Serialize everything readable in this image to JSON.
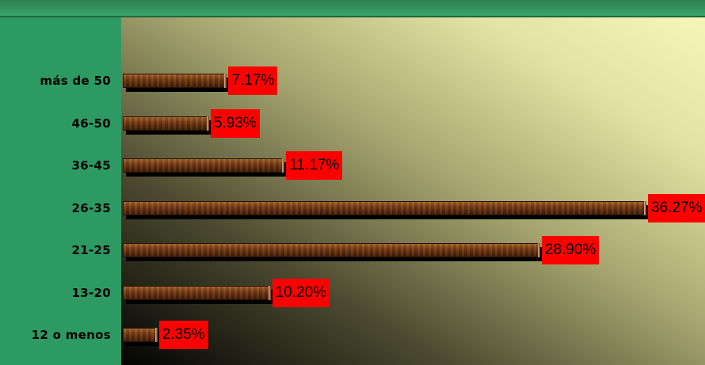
{
  "chart_data": {
    "type": "bar",
    "orientation": "horizontal",
    "categories": [
      "más de 50",
      "46-50",
      "36-45",
      "26-35",
      "21-25",
      "13-20",
      "12 o menos"
    ],
    "values": [
      7.17,
      5.93,
      11.17,
      36.27,
      28.9,
      10.2,
      2.35
    ],
    "data_labels": [
      "7.17%",
      "5.93%",
      "11.17%",
      "36.27%",
      "28.90%",
      "10.20%",
      "2.35%"
    ],
    "title": "",
    "xlabel": "",
    "ylabel": "",
    "xlim": [
      0,
      36.27
    ],
    "grid": false,
    "legend": "none",
    "colors": {
      "bar": "#6b3512",
      "label_background": "#ff0000",
      "frame": "#2e9a63"
    }
  }
}
